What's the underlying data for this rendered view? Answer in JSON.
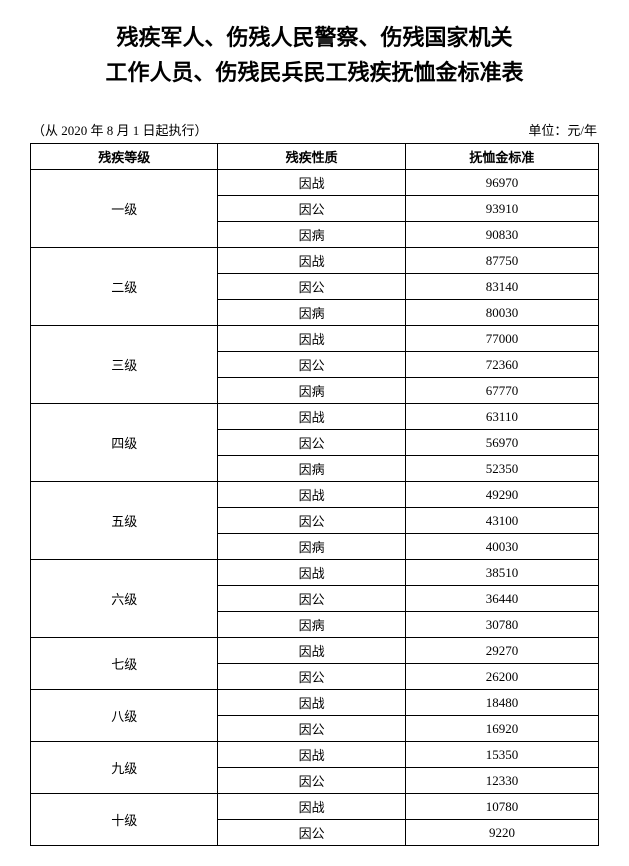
{
  "title_line1": "残疾军人、伤残人民警察、伤残国家机关",
  "title_line2": "工作人员、伤残民兵民工残疾抚恤金标准表",
  "effective_note": "（从 2020 年 8 月 1 日起执行）",
  "unit_label": "单位：元/年",
  "table": {
    "columns": [
      "残疾等级",
      "残疾性质",
      "抚恤金标准"
    ],
    "col_widths_pct": [
      33,
      33,
      34
    ],
    "levels": [
      {
        "label": "一级",
        "rows": [
          {
            "type": "因战",
            "amount": "96970"
          },
          {
            "type": "因公",
            "amount": "93910"
          },
          {
            "type": "因病",
            "amount": "90830"
          }
        ]
      },
      {
        "label": "二级",
        "rows": [
          {
            "type": "因战",
            "amount": "87750"
          },
          {
            "type": "因公",
            "amount": "83140"
          },
          {
            "type": "因病",
            "amount": "80030"
          }
        ]
      },
      {
        "label": "三级",
        "rows": [
          {
            "type": "因战",
            "amount": "77000"
          },
          {
            "type": "因公",
            "amount": "72360"
          },
          {
            "type": "因病",
            "amount": "67770"
          }
        ]
      },
      {
        "label": "四级",
        "rows": [
          {
            "type": "因战",
            "amount": "63110"
          },
          {
            "type": "因公",
            "amount": "56970"
          },
          {
            "type": "因病",
            "amount": "52350"
          }
        ]
      },
      {
        "label": "五级",
        "rows": [
          {
            "type": "因战",
            "amount": "49290"
          },
          {
            "type": "因公",
            "amount": "43100"
          },
          {
            "type": "因病",
            "amount": "40030"
          }
        ]
      },
      {
        "label": "六级",
        "rows": [
          {
            "type": "因战",
            "amount": "38510"
          },
          {
            "type": "因公",
            "amount": "36440"
          },
          {
            "type": "因病",
            "amount": "30780"
          }
        ]
      },
      {
        "label": "七级",
        "rows": [
          {
            "type": "因战",
            "amount": "29270"
          },
          {
            "type": "因公",
            "amount": "26200"
          }
        ]
      },
      {
        "label": "八级",
        "rows": [
          {
            "type": "因战",
            "amount": "18480"
          },
          {
            "type": "因公",
            "amount": "16920"
          }
        ]
      },
      {
        "label": "九级",
        "rows": [
          {
            "type": "因战",
            "amount": "15350"
          },
          {
            "type": "因公",
            "amount": "12330"
          }
        ]
      },
      {
        "label": "十级",
        "rows": [
          {
            "type": "因战",
            "amount": "10780"
          },
          {
            "type": "因公",
            "amount": "9220"
          }
        ]
      }
    ],
    "border_color": "#000000",
    "background_color": "#ffffff",
    "font_size": 13,
    "header_font_weight": "bold"
  }
}
